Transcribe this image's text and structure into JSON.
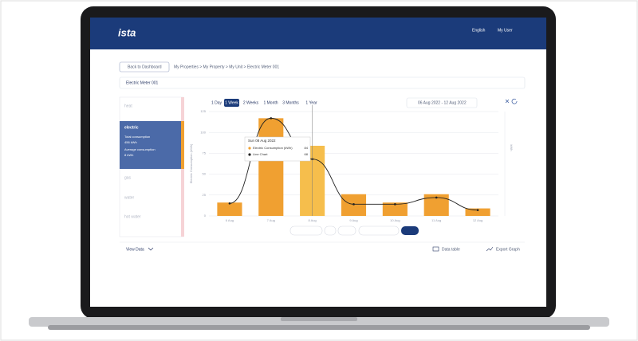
{
  "header": {
    "logo": "ista",
    "language": "English",
    "user": "My User"
  },
  "navigation": {
    "back": "Back to Dashboard",
    "breadcrumb": "My Properties > My Property > My Unit > Electric Meter 001"
  },
  "meter_select": "Electric Meter 001",
  "sidebar": {
    "items": [
      {
        "label": "heat"
      },
      {
        "label": "electric",
        "lines": [
          "Total consumption",
          "456 kWh",
          "Average consumption",
          "8 kWh"
        ]
      },
      {
        "label": "gas"
      },
      {
        "label": "water"
      },
      {
        "label": "hot water"
      }
    ]
  },
  "periods": [
    "1 Day",
    "1 Week",
    "2 Weeks",
    "1 Month",
    "3 Months",
    "1 Year"
  ],
  "date_range": "06 Aug 2022 - 12 Aug 2022",
  "chart_data": {
    "type": "bar",
    "y_label": "Electric Consumption (kWh)",
    "y2_label": "kWh",
    "categories": [
      "6 Aug",
      "7 Aug",
      "8 Aug",
      "9 Aug",
      "10 Aug",
      "11 Aug",
      "12 Aug"
    ],
    "series": [
      {
        "name": "Electric Consumption (kWh)",
        "color": "#f0a031",
        "colors": [
          "#f0a031",
          "#f0a031",
          "#f6be4c",
          "#f0a031",
          "#f0a031",
          "#f0a031",
          "#f0a031"
        ],
        "values": [
          16,
          117,
          84,
          26,
          16,
          26,
          9
        ]
      },
      {
        "name": "Line Chart",
        "type": "line",
        "color": "#222222",
        "values": [
          15,
          117,
          68,
          14,
          14,
          22,
          7
        ]
      }
    ],
    "ylim": [
      0,
      125
    ],
    "yticks": [
      0,
      25,
      50,
      75,
      100,
      125
    ],
    "grid": true,
    "tooltip": {
      "title": "Sun 08 Aug 2022",
      "index": 2
    }
  },
  "footer": {
    "view_data": "View Data",
    "data_table": "Data table",
    "export": "Export Graph"
  }
}
